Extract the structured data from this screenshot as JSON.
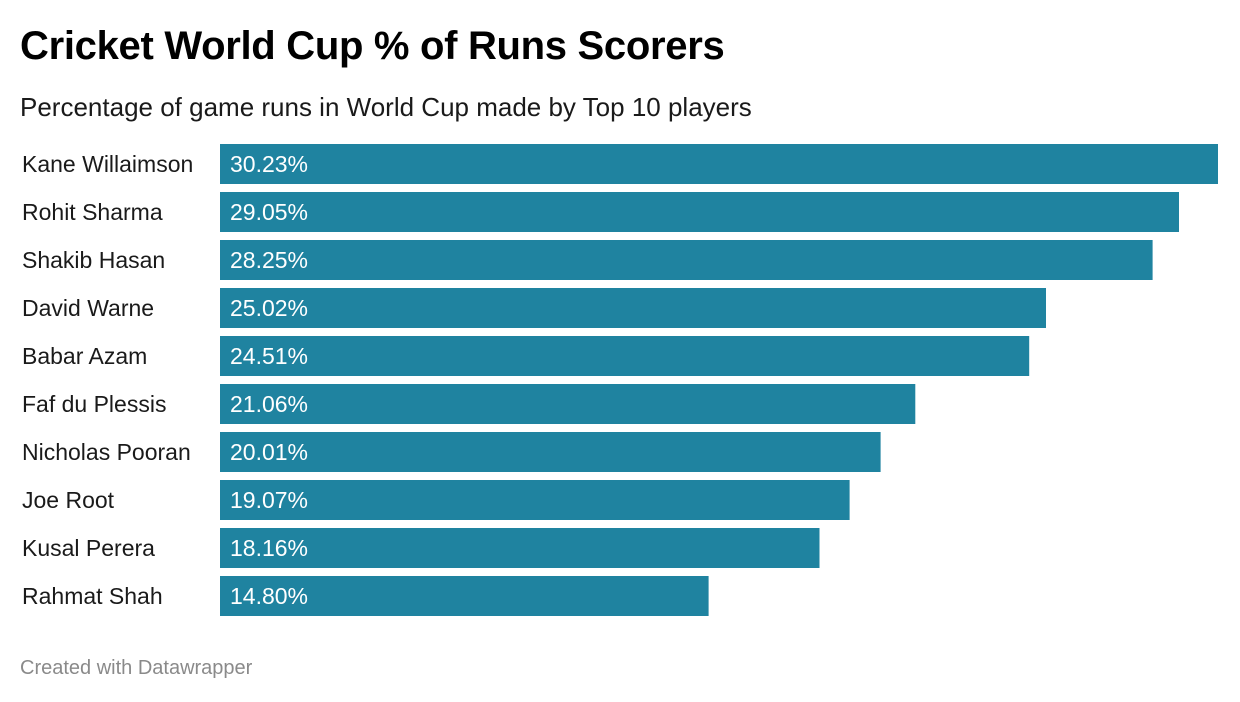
{
  "header": {
    "title": "Cricket World Cup % of Runs Scorers",
    "subtitle": "Percentage of game runs in World Cup made by Top 10 players"
  },
  "footer": {
    "credit": "Created with Datawrapper"
  },
  "colors": {
    "bar": "#1f83a0",
    "label_text": "#1a1a1a",
    "value_text": "#ffffff"
  },
  "chart_data": {
    "type": "bar",
    "orientation": "horizontal",
    "title": "Cricket World Cup % of Runs Scorers",
    "subtitle": "Percentage of game runs in World Cup made by Top 10 players",
    "categories": [
      "Kane Willaimson",
      "Rohit Sharma",
      "Shakib Hasan",
      "David Warne",
      "Babar Azam",
      "Faf du Plessis",
      "Nicholas Pooran",
      "Joe Root",
      "Kusal Perera",
      "Rahmat Shah"
    ],
    "values": [
      30.23,
      29.05,
      28.25,
      25.02,
      24.51,
      21.06,
      20.01,
      19.07,
      18.16,
      14.8
    ],
    "value_labels": [
      "30.23%",
      "29.05%",
      "28.25%",
      "25.02%",
      "24.51%",
      "21.06%",
      "20.01%",
      "19.07%",
      "18.16%",
      "14.80%"
    ],
    "xlim": [
      0,
      30.23
    ],
    "grid": false,
    "legend": "none"
  }
}
